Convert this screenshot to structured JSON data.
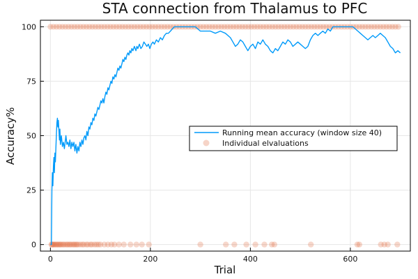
{
  "chart_data": {
    "type": "line",
    "title": "STA connection from Thalamus to PFC",
    "xlabel": "Trial",
    "ylabel": "Accuracy%",
    "xlim": [
      -20,
      720
    ],
    "ylim": [
      -3,
      103
    ],
    "xticks": [
      0,
      200,
      400,
      600
    ],
    "yticks": [
      0,
      25,
      50,
      75,
      100
    ],
    "grid": true,
    "legend_position": "right",
    "colors": {
      "line": "#009AFA",
      "scatter": "#E26F46"
    },
    "series": [
      {
        "name": "Running mean accuracy (window size 40)",
        "kind": "line",
        "points": [
          [
            0,
            0
          ],
          [
            1,
            0
          ],
          [
            2,
            0
          ],
          [
            3,
            25
          ],
          [
            4,
            33
          ],
          [
            5,
            27
          ],
          [
            6,
            36
          ],
          [
            7,
            40
          ],
          [
            8,
            33
          ],
          [
            9,
            42
          ],
          [
            10,
            38
          ],
          [
            12,
            51
          ],
          [
            13,
            56
          ],
          [
            14,
            58
          ],
          [
            15,
            54
          ],
          [
            16,
            57
          ],
          [
            18,
            48
          ],
          [
            19,
            53
          ],
          [
            20,
            46
          ],
          [
            22,
            50
          ],
          [
            24,
            45
          ],
          [
            26,
            47
          ],
          [
            28,
            44
          ],
          [
            30,
            48
          ],
          [
            31,
            50
          ],
          [
            33,
            46
          ],
          [
            35,
            47
          ],
          [
            37,
            45
          ],
          [
            39,
            48
          ],
          [
            41,
            44
          ],
          [
            43,
            47
          ],
          [
            45,
            45
          ],
          [
            47,
            47
          ],
          [
            49,
            43
          ],
          [
            51,
            46
          ],
          [
            53,
            42
          ],
          [
            55,
            45
          ],
          [
            57,
            43
          ],
          [
            59,
            47
          ],
          [
            61,
            45
          ],
          [
            63,
            48
          ],
          [
            65,
            46
          ],
          [
            67,
            49
          ],
          [
            69,
            50
          ],
          [
            71,
            48
          ],
          [
            73,
            52
          ],
          [
            75,
            50
          ],
          [
            77,
            54
          ],
          [
            79,
            53
          ],
          [
            81,
            56
          ],
          [
            83,
            55
          ],
          [
            85,
            58
          ],
          [
            87,
            57
          ],
          [
            89,
            60
          ],
          [
            91,
            59
          ],
          [
            93,
            61
          ],
          [
            95,
            63
          ],
          [
            97,
            62
          ],
          [
            99,
            64
          ],
          [
            101,
            66
          ],
          [
            103,
            65
          ],
          [
            105,
            67
          ],
          [
            107,
            65
          ],
          [
            109,
            68
          ],
          [
            111,
            70
          ],
          [
            113,
            69
          ],
          [
            115,
            72
          ],
          [
            117,
            71
          ],
          [
            119,
            73
          ],
          [
            121,
            75
          ],
          [
            123,
            74
          ],
          [
            125,
            77
          ],
          [
            127,
            76
          ],
          [
            129,
            78
          ],
          [
            131,
            77
          ],
          [
            133,
            79
          ],
          [
            135,
            81
          ],
          [
            137,
            80
          ],
          [
            139,
            82
          ],
          [
            141,
            81
          ],
          [
            143,
            83
          ],
          [
            145,
            85
          ],
          [
            147,
            84
          ],
          [
            149,
            86
          ],
          [
            151,
            85
          ],
          [
            153,
            87
          ],
          [
            155,
            88
          ],
          [
            157,
            87
          ],
          [
            159,
            89
          ],
          [
            161,
            88
          ],
          [
            163,
            90
          ],
          [
            165,
            89
          ],
          [
            168,
            91
          ],
          [
            171,
            89
          ],
          [
            173,
            91
          ],
          [
            175,
            90
          ],
          [
            178,
            92
          ],
          [
            181,
            90
          ],
          [
            184,
            91
          ],
          [
            187,
            93
          ],
          [
            190,
            92
          ],
          [
            193,
            91
          ],
          [
            196,
            92
          ],
          [
            199,
            90
          ],
          [
            202,
            92
          ],
          [
            205,
            93
          ],
          [
            208,
            92
          ],
          [
            212,
            94
          ],
          [
            216,
            93
          ],
          [
            220,
            95
          ],
          [
            224,
            94
          ],
          [
            228,
            96
          ],
          [
            232,
            97
          ],
          [
            236,
            97
          ],
          [
            240,
            98
          ],
          [
            244,
            99
          ],
          [
            248,
            100
          ],
          [
            255,
            100
          ],
          [
            262,
            100
          ],
          [
            270,
            100
          ],
          [
            280,
            100
          ],
          [
            290,
            100
          ],
          [
            300,
            98
          ],
          [
            310,
            98
          ],
          [
            320,
            98
          ],
          [
            330,
            97
          ],
          [
            340,
            98
          ],
          [
            350,
            97
          ],
          [
            360,
            95
          ],
          [
            365,
            93
          ],
          [
            370,
            91
          ],
          [
            375,
            92
          ],
          [
            380,
            94
          ],
          [
            385,
            93
          ],
          [
            390,
            91
          ],
          [
            395,
            89
          ],
          [
            400,
            91
          ],
          [
            405,
            92
          ],
          [
            410,
            90
          ],
          [
            415,
            93
          ],
          [
            420,
            92
          ],
          [
            425,
            94
          ],
          [
            430,
            92
          ],
          [
            435,
            91
          ],
          [
            440,
            89
          ],
          [
            445,
            88
          ],
          [
            450,
            90
          ],
          [
            455,
            89
          ],
          [
            460,
            91
          ],
          [
            465,
            93
          ],
          [
            470,
            92
          ],
          [
            475,
            94
          ],
          [
            480,
            93
          ],
          [
            485,
            91
          ],
          [
            490,
            92
          ],
          [
            495,
            93
          ],
          [
            500,
            92
          ],
          [
            505,
            91
          ],
          [
            510,
            90
          ],
          [
            515,
            91
          ],
          [
            520,
            94
          ],
          [
            525,
            96
          ],
          [
            530,
            97
          ],
          [
            535,
            96
          ],
          [
            540,
            97
          ],
          [
            545,
            98
          ],
          [
            550,
            97
          ],
          [
            555,
            99
          ],
          [
            560,
            98
          ],
          [
            565,
            100
          ],
          [
            575,
            100
          ],
          [
            585,
            100
          ],
          [
            595,
            100
          ],
          [
            605,
            100
          ],
          [
            610,
            99
          ],
          [
            615,
            98
          ],
          [
            620,
            97
          ],
          [
            625,
            96
          ],
          [
            630,
            95
          ],
          [
            635,
            94
          ],
          [
            640,
            95
          ],
          [
            645,
            96
          ],
          [
            650,
            95
          ],
          [
            655,
            96
          ],
          [
            660,
            97
          ],
          [
            665,
            96
          ],
          [
            670,
            95
          ],
          [
            675,
            93
          ],
          [
            680,
            91
          ],
          [
            685,
            90
          ],
          [
            690,
            88
          ],
          [
            695,
            89
          ],
          [
            700,
            88
          ]
        ]
      },
      {
        "name": "Individual elvaluations",
        "kind": "scatter",
        "zero_x": [
          2,
          3,
          5,
          6,
          8,
          10,
          12,
          14,
          16,
          18,
          20,
          22,
          25,
          27,
          30,
          33,
          35,
          38,
          40,
          43,
          46,
          48,
          51,
          53,
          56,
          60,
          64,
          67,
          72,
          75,
          80,
          83,
          88,
          92,
          96,
          100,
          108,
          115,
          122,
          128,
          137,
          147,
          160,
          172,
          183,
          197,
          300,
          351,
          368,
          392,
          410,
          428,
          443,
          448,
          521,
          614,
          618,
          661,
          668,
          675,
          694
        ],
        "hundred_x_range": [
          0,
          700
        ],
        "hundred_x_step": 6
      }
    ]
  }
}
